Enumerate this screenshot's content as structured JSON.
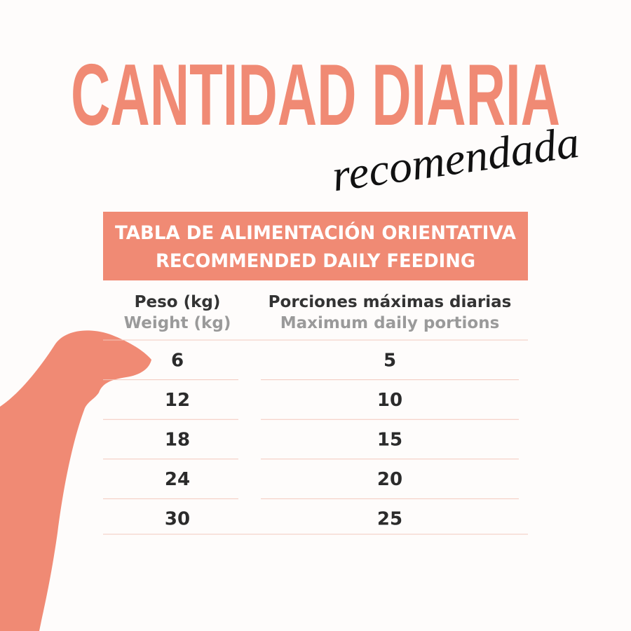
{
  "header": {
    "title": "CANTIDAD DIARIA",
    "subtitle": "recomendada"
  },
  "table": {
    "caption": [
      "TABLA DE ALIMENTACIÓN ORIENTATIVA",
      "RECOMMENDED DAILY FEEDING"
    ],
    "columns": [
      {
        "label": "Peso (kg)",
        "sublabel": "Weight (kg)"
      },
      {
        "label": "Porciones máximas diarias",
        "sublabel": "Maximum daily portions"
      }
    ],
    "rows": [
      [
        6,
        5
      ],
      [
        12,
        10
      ],
      [
        18,
        15
      ],
      [
        24,
        20
      ],
      [
        30,
        25
      ]
    ]
  }
}
